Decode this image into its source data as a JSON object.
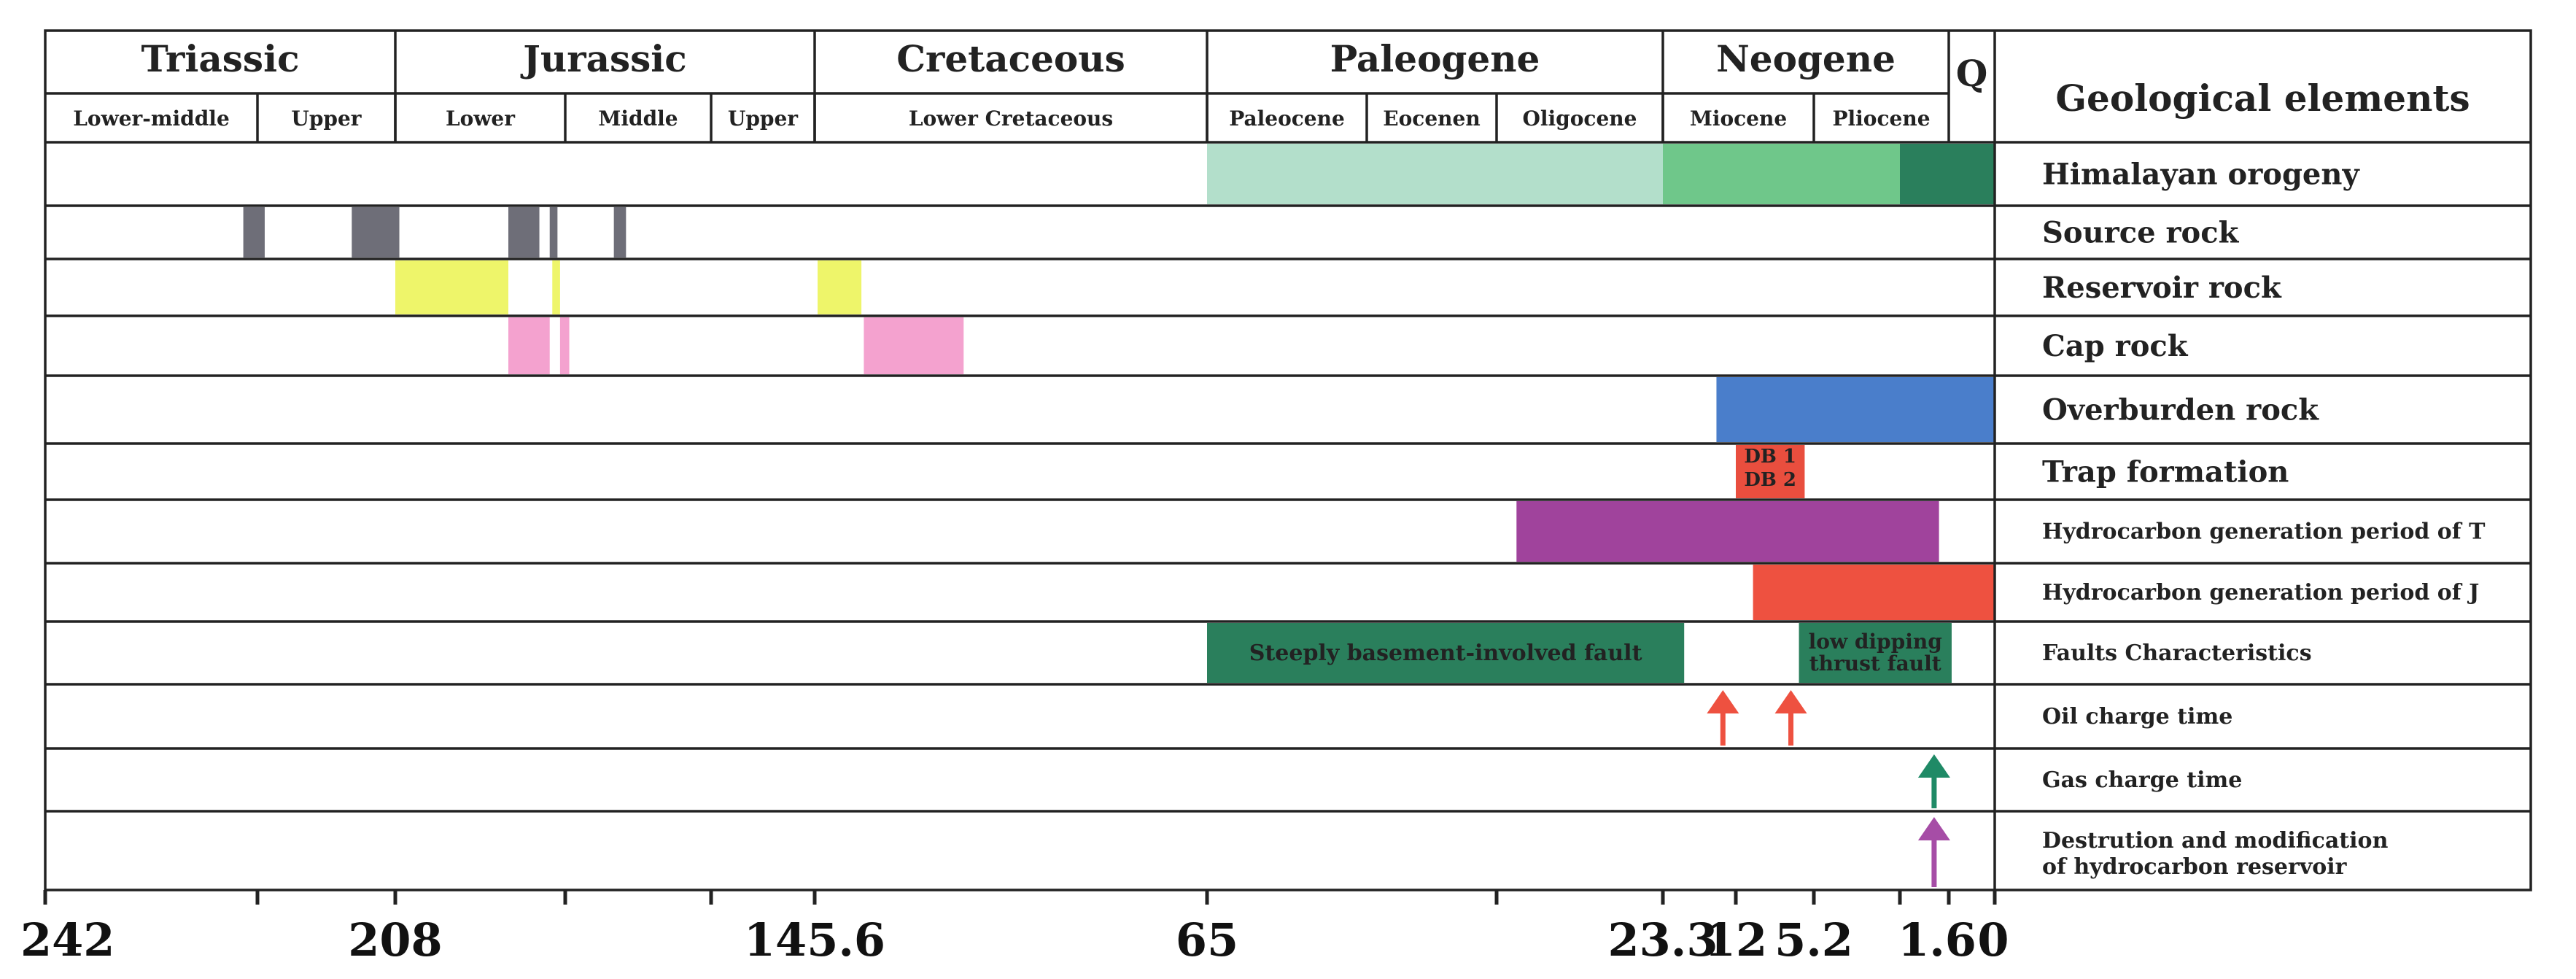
{
  "title_header": "Geological elements",
  "periods": [
    {
      "name": "Triassic",
      "start": 242,
      "end": 208
    },
    {
      "name": "Jurassic",
      "start": 208,
      "end": 145.6
    },
    {
      "name": "Cretaceous",
      "start": 145.6,
      "end": 65
    },
    {
      "name": "Paleogene",
      "start": 65,
      "end": 23.3
    },
    {
      "name": "Neogene",
      "start": 23.3,
      "end": 1.6
    },
    {
      "name": "Q",
      "start": 1.6,
      "end": 0
    }
  ],
  "epochs": [
    {
      "name": "Lower-middle",
      "start": 242,
      "end": 227
    },
    {
      "name": "Upper",
      "start": 227,
      "end": 208
    },
    {
      "name": "Lower",
      "start": 208,
      "end": 183
    },
    {
      "name": "Middle",
      "start": 183,
      "end": 165
    },
    {
      "name": "Upper",
      "start": 165,
      "end": 145.6
    },
    {
      "name": "Lower Cretaceous",
      "start": 145.6,
      "end": 65
    },
    {
      "name": "Paleocene",
      "start": 65,
      "end": 52
    },
    {
      "name": "Eocenen",
      "start": 52,
      "end": 40
    },
    {
      "name": "Oligocene",
      "start": 40,
      "end": 23.3
    },
    {
      "name": "Miocene",
      "start": 23.3,
      "end": 5.2
    },
    {
      "name": "Pliocene",
      "start": 5.2,
      "end": 1.6
    }
  ],
  "rows": [
    {
      "label": "Himalayan orogeny",
      "big": true,
      "bars": [
        {
          "start": 65,
          "end": 23.3,
          "color": "#b3dfcb"
        },
        {
          "start": 23.3,
          "end": 3.6,
          "color": "#6fc78a"
        },
        {
          "start": 3.6,
          "end": 0,
          "color": "#2a7f5c"
        }
      ]
    },
    {
      "label": "Source rock",
      "big": true,
      "bars": [
        {
          "start": 228,
          "end": 226,
          "color": "#6e6e78"
        },
        {
          "start": 214,
          "end": 207.5,
          "color": "#6e6e78"
        },
        {
          "start": 194,
          "end": 188,
          "color": "#6e6e78"
        },
        {
          "start": 186,
          "end": 184.5,
          "color": "#6e6e78"
        },
        {
          "start": 177,
          "end": 175.5,
          "color": "#6e6e78"
        }
      ]
    },
    {
      "label": "Reservoir rock",
      "big": true,
      "bars": [
        {
          "start": 208,
          "end": 194,
          "color": "#eef56a"
        },
        {
          "start": 185.5,
          "end": 184,
          "color": "#eef56a"
        },
        {
          "start": 145,
          "end": 136,
          "color": "#eef56a"
        }
      ]
    },
    {
      "label": "Cap rock",
      "big": true,
      "bars": [
        {
          "start": 194,
          "end": 186,
          "color": "#f4a2cf"
        },
        {
          "start": 184,
          "end": 182.5,
          "color": "#f4a2cf"
        },
        {
          "start": 135.5,
          "end": 115,
          "color": "#f4a2cf"
        }
      ]
    },
    {
      "label": "Overburden rock",
      "big": true,
      "bars": [
        {
          "start": 15,
          "end": 0,
          "color": "#4a7ecb"
        }
      ]
    },
    {
      "label": "Trap formation",
      "big": true,
      "bars": [
        {
          "start": 12,
          "end": 6,
          "color": "#e94e3e"
        }
      ],
      "bar_texts": [
        "DB 1",
        "DB 2"
      ]
    },
    {
      "label": "Hydrocarbon generation period of T",
      "big": false,
      "bars": [
        {
          "start": 38,
          "end": 2,
          "color": "#a0439c"
        }
      ]
    },
    {
      "label": "Hydrocarbon generation period of J",
      "big": false,
      "bars": [
        {
          "start": 10.5,
          "end": 0,
          "color": "#ee5140"
        }
      ]
    },
    {
      "label": "Faults Characteristics",
      "big": false,
      "bars": [
        {
          "start": 65,
          "end": 20,
          "color": "#2a7f5c",
          "text": "Steeply basement-involved fault"
        },
        {
          "start": 6.5,
          "end": 1.5,
          "color": "#2a7f5c",
          "text": "low dipping thrust fault",
          "text_lines": [
            "low dipping",
            "thrust fault"
          ]
        }
      ]
    },
    {
      "label": "Oil charge time",
      "big": false,
      "arrows": [
        {
          "at": 14,
          "color": "#ee5140"
        },
        {
          "at": 7.2,
          "color": "#ee5140"
        }
      ]
    },
    {
      "label": "Gas charge time",
      "big": false,
      "arrows": [
        {
          "at": 2.2,
          "color": "#1f8a66"
        }
      ]
    },
    {
      "label": "Destrution and modification of hydrocarbon reservoir",
      "big": false,
      "label_lines": [
        "Destrution and modification",
        "of hydrocarbon reservoir"
      ],
      "arrows": [
        {
          "at": 2.2,
          "color": "#a64da6"
        }
      ]
    }
  ],
  "axis": {
    "labels": [
      {
        "value": 242,
        "text": "242"
      },
      {
        "value": 208,
        "text": "208"
      },
      {
        "value": 145.6,
        "text": "145.6"
      },
      {
        "value": 65,
        "text": "65"
      },
      {
        "value": 23.3,
        "text": "23.3"
      },
      {
        "value": 12,
        "text": "12"
      },
      {
        "value": 5.2,
        "text": "5.2"
      },
      {
        "value": 1.6,
        "text": "1.6"
      },
      {
        "value": 0,
        "text": "0"
      }
    ],
    "minor_ticks": [
      227,
      183,
      165,
      40,
      3.6
    ]
  }
}
